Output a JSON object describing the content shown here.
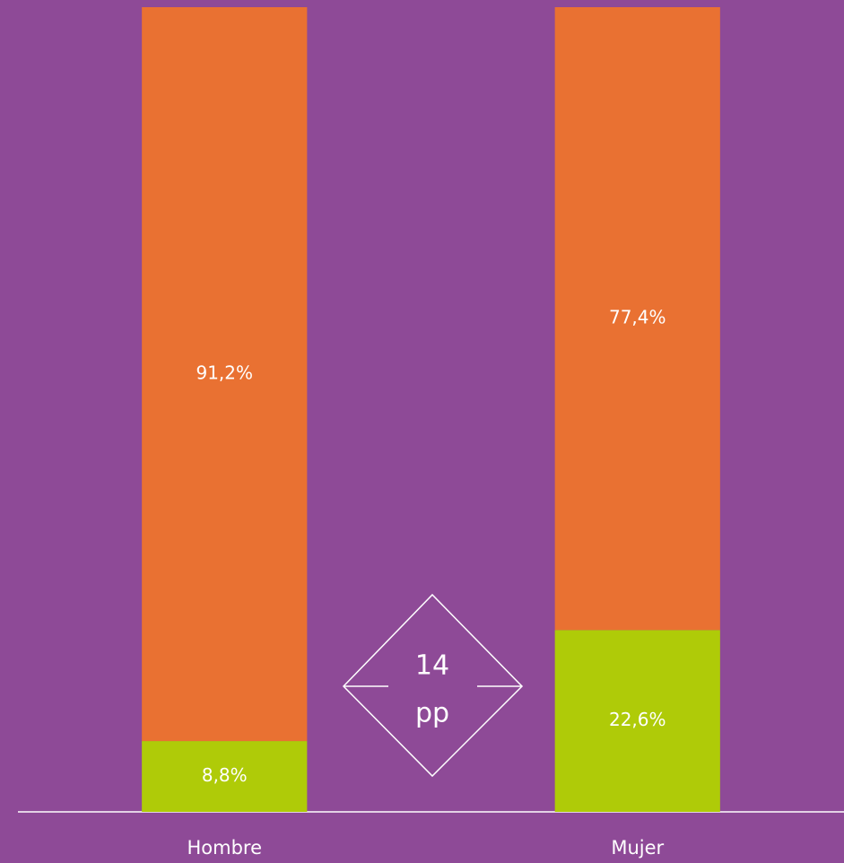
{
  "chart_data": {
    "type": "stacked_bar",
    "categories": [
      "Hombre",
      "Mujer"
    ],
    "series": [
      {
        "color": "#afcb08",
        "values": [
          8.8,
          22.6
        ],
        "value_labels": [
          "8,8%",
          "22,6%"
        ]
      },
      {
        "color": "#e97132",
        "values": [
          91.2,
          77.4
        ],
        "value_labels": [
          "91,2%",
          "77,4%"
        ]
      }
    ],
    "ylim": [
      0,
      100
    ],
    "annotation": [
      "14",
      "pp"
    ],
    "background": "#8e4a97"
  }
}
